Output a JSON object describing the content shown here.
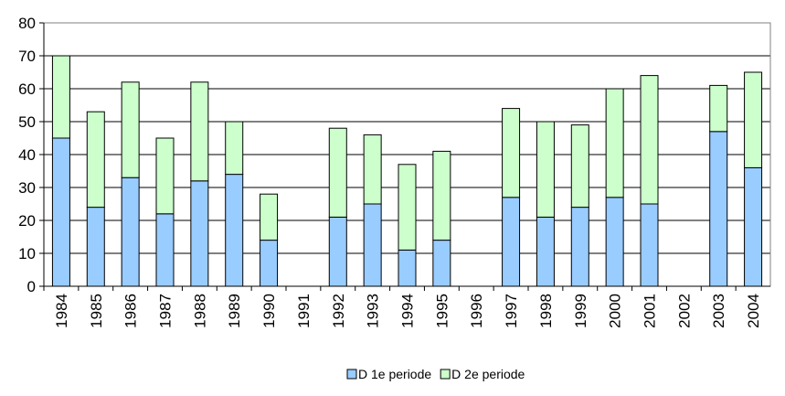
{
  "chart_data": {
    "type": "bar",
    "stacked": true,
    "categories": [
      "1984",
      "1985",
      "1986",
      "1987",
      "1988",
      "1989",
      "1990",
      "1991",
      "1992",
      "1993",
      "1994",
      "1995",
      "1996",
      "1997",
      "1998",
      "1999",
      "2000",
      "2001",
      "2002",
      "2003",
      "2004"
    ],
    "series": [
      {
        "name": "D 1e periode",
        "color": "#99ccff",
        "values": [
          45,
          24,
          33,
          22,
          32,
          34,
          14,
          null,
          21,
          25,
          11,
          14,
          null,
          27,
          21,
          24,
          27,
          25,
          null,
          47,
          36
        ]
      },
      {
        "name": "D 2e periode",
        "color": "#ccffcc",
        "values": [
          25,
          29,
          29,
          23,
          30,
          16,
          14,
          null,
          27,
          21,
          26,
          27,
          null,
          27,
          29,
          25,
          33,
          39,
          null,
          14,
          29
        ]
      }
    ],
    "ylim": [
      0,
      80
    ],
    "yticks": [
      0,
      10,
      20,
      30,
      40,
      50,
      60,
      70,
      80
    ],
    "grid": true,
    "legend": "bottom"
  }
}
